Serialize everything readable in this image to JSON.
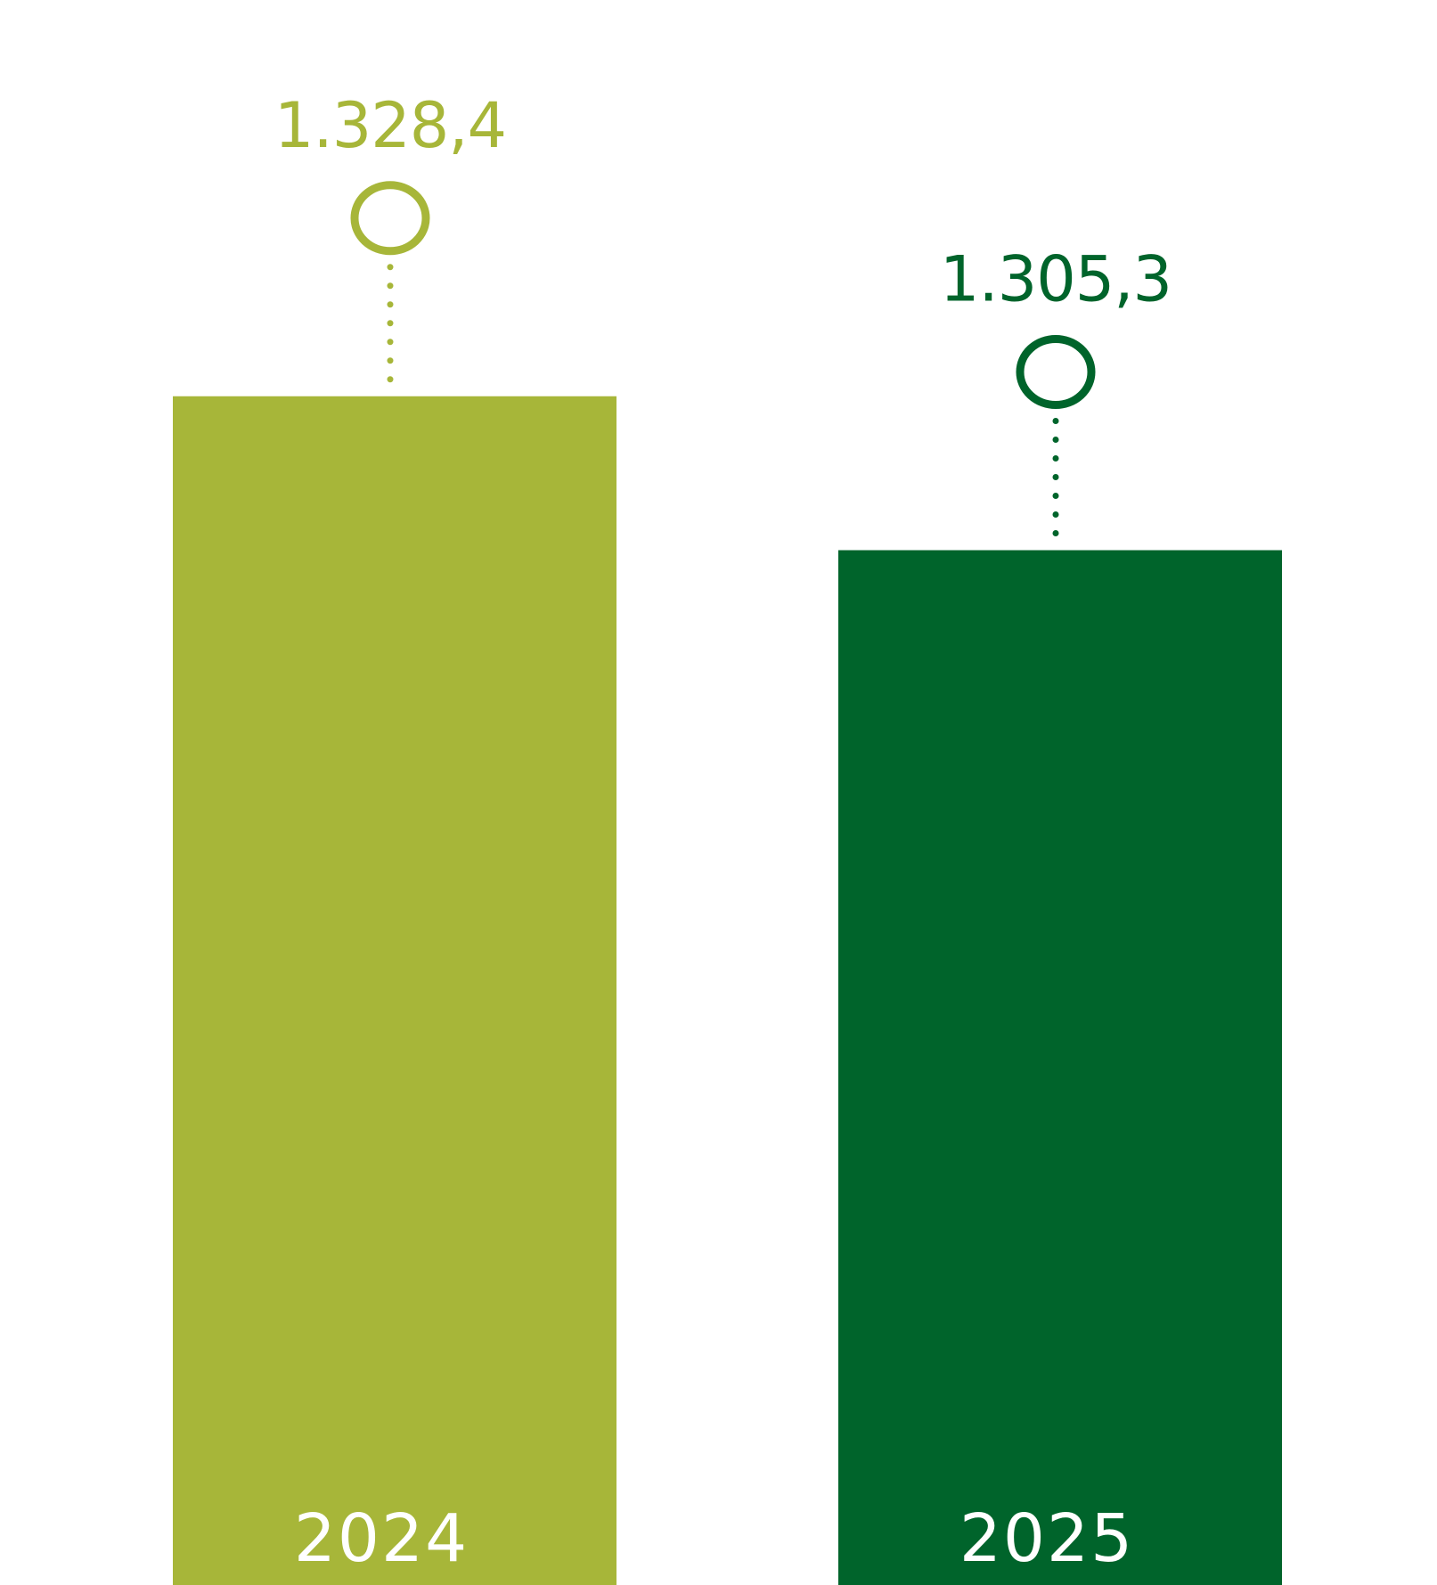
{
  "chart_data": {
    "type": "bar",
    "categories": [
      "2024",
      "2025"
    ],
    "values": [
      1328.4,
      1305.3
    ],
    "value_labels": [
      "1.328,4",
      "1.305,3"
    ],
    "colors": [
      "#a7b639",
      "#00642b"
    ],
    "ylim": [
      1150,
      1340
    ],
    "title": "",
    "xlabel": "",
    "ylabel": "",
    "grid": false,
    "legend": "none"
  }
}
